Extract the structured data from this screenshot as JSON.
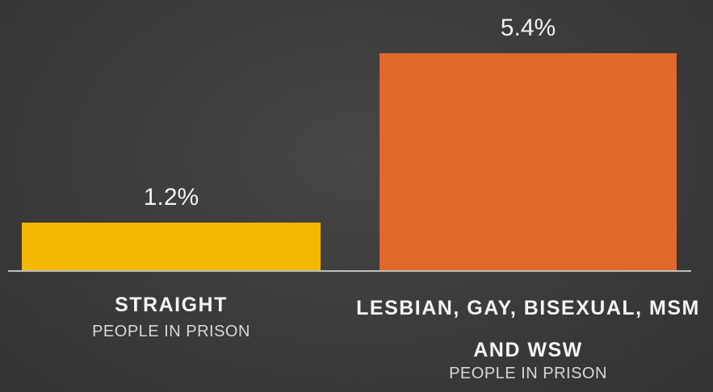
{
  "chart_data": {
    "type": "bar",
    "categories": [
      "STRAIGHT",
      "LESBIAN, GAY, BISEXUAL, MSM AND WSW"
    ],
    "category_sublabels": [
      "PEOPLE IN PRISON",
      "PEOPLE IN PRISON"
    ],
    "values": [
      1.2,
      5.4
    ],
    "value_labels": [
      "1.2%",
      "5.4%"
    ],
    "colors": [
      "#f5b800",
      "#e0692b"
    ]
  }
}
